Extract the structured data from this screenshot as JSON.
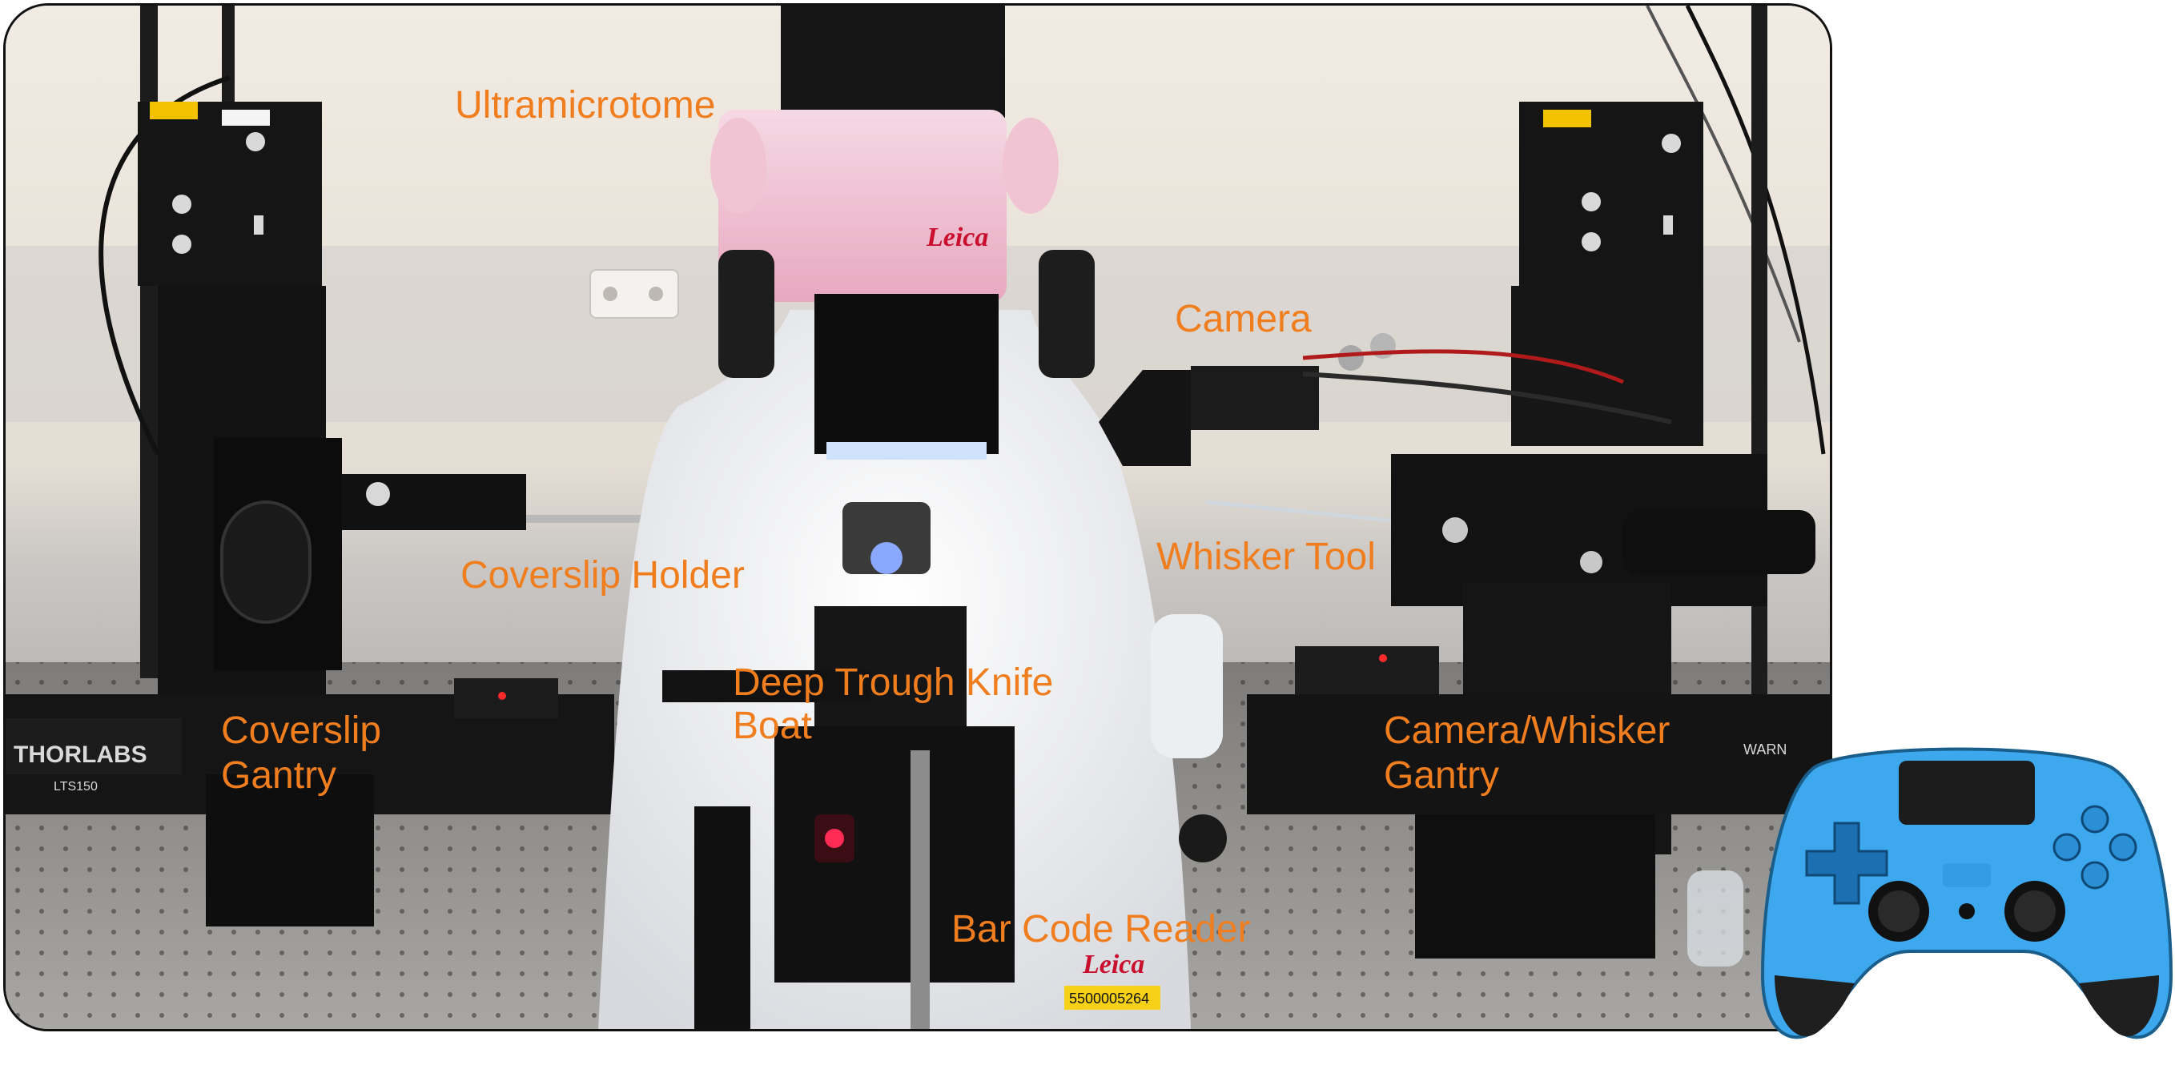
{
  "labels": {
    "ultramicrotome": "Ultramicrotome",
    "camera": "Camera",
    "whisker_tool": "Whisker Tool",
    "coverslip_holder": "Coverslip Holder",
    "deep_trough_line1": "Deep Trough Knife",
    "deep_trough_line2": "Boat",
    "coverslip_gantry_line1": "Coverslip",
    "coverslip_gantry_line2": "Gantry",
    "camera_whisker_line1": "Camera/Whisker",
    "camera_whisker_line2": "Gantry",
    "bar_code_reader": "Bar Code Reader"
  },
  "device_text": {
    "leica_top": "Leica",
    "leica_bottom": "Leica",
    "serial_tag": "5500005264",
    "thorlabs": "THORLABS",
    "thorlabs_model": "LTS150",
    "warning": "WARN"
  },
  "colors": {
    "label": "#f07d1e",
    "controller": "#3ea8ee",
    "leica_red": "#c8102e",
    "tag_yellow": "#f7d117"
  },
  "icons": {
    "controller": "gamepad-icon"
  }
}
